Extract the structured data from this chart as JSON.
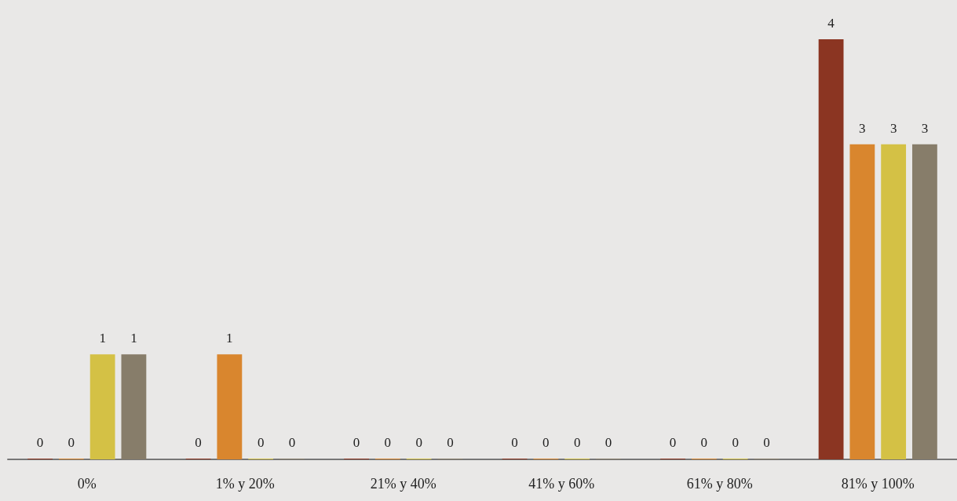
{
  "chart_data": {
    "type": "bar",
    "categories": [
      "0%",
      "1% y 20%",
      "21% y 40%",
      "41% y 60%",
      "61% y 80%",
      "81% y 100%"
    ],
    "series": [
      {
        "color": "#8b3522",
        "values": [
          0,
          0,
          0,
          0,
          0,
          4
        ]
      },
      {
        "color": "#d9862e",
        "values": [
          0,
          1,
          0,
          0,
          0,
          3
        ]
      },
      {
        "color": "#d4c145",
        "values": [
          1,
          0,
          0,
          0,
          0,
          3
        ]
      },
      {
        "color": "#877d6a",
        "values": [
          1,
          0,
          0,
          0,
          0,
          3
        ]
      }
    ],
    "data_labels": true
  }
}
